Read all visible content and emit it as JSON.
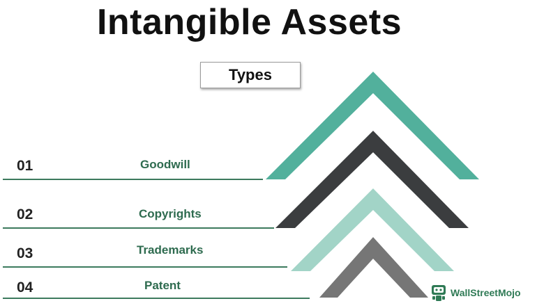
{
  "title": "Intangible Assets",
  "types_label": "Types",
  "items": [
    {
      "number": "01",
      "label": "Goodwill"
    },
    {
      "number": "02",
      "label": "Copyrights"
    },
    {
      "number": "03",
      "label": "Trademarks"
    },
    {
      "number": "04",
      "label": "Patent"
    }
  ],
  "colors": {
    "chevron_1": "#52b09c",
    "chevron_2": "#3b3d3f",
    "chevron_3": "#a2d4c7",
    "chevron_4": "#767676",
    "label_text": "#2e6b4f",
    "line": "#3c7a5d"
  },
  "watermark": {
    "text": "WallStreetMojo",
    "icon": "wallstreetmojo-logo-icon"
  }
}
